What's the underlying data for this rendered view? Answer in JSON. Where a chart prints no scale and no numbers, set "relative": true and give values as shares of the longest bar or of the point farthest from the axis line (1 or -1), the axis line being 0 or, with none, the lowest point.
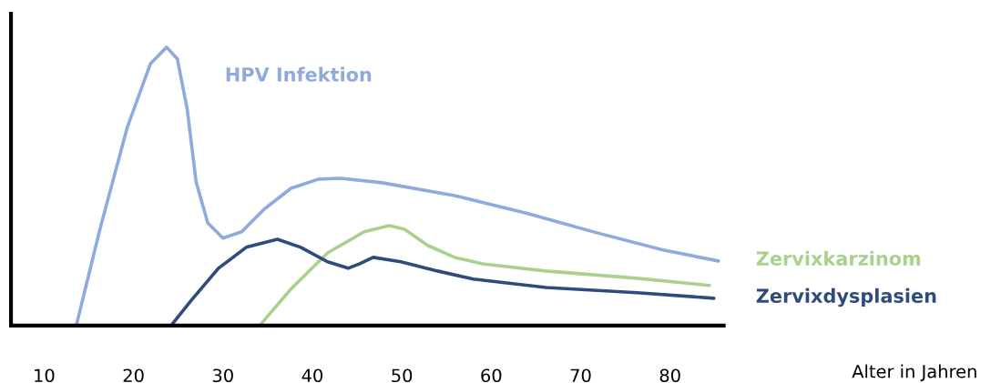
{
  "chart_data": {
    "type": "line",
    "relative": true,
    "annotations": [
      "Alter in Jahren"
    ],
    "xlim": [
      6.3,
      86
    ],
    "xticks": [
      10,
      20,
      30,
      40,
      50,
      60,
      70,
      80
    ],
    "grid": false,
    "legend": false,
    "marker": "none",
    "line_style": "solid",
    "series": [
      {
        "name": "HPV Infektion",
        "color": "#8faadc",
        "x": [
          13.6,
          16.3,
          19.3,
          21.9,
          23.7,
          24.9,
          26.0,
          27.0,
          28.3,
          30.0,
          32.1,
          34.6,
          37.6,
          40.7,
          43.2,
          47.8,
          55.9,
          64.1,
          72.2,
          79.3,
          85.4
        ],
        "values": [
          0,
          0.353,
          0.712,
          0.941,
          1.0,
          0.958,
          0.778,
          0.516,
          0.369,
          0.314,
          0.337,
          0.418,
          0.493,
          0.526,
          0.529,
          0.513,
          0.467,
          0.402,
          0.33,
          0.271,
          0.232
        ]
      },
      {
        "name": "Zervixkarzinom",
        "color": "#a9d18e",
        "x": [
          34.1,
          37.6,
          41.7,
          45.8,
          48.6,
          50.3,
          52.9,
          55.9,
          59.0,
          66.1,
          76.3,
          84.4
        ],
        "values": [
          0,
          0.131,
          0.261,
          0.337,
          0.359,
          0.346,
          0.288,
          0.245,
          0.222,
          0.196,
          0.17,
          0.144
        ]
      },
      {
        "name": "Zervixdysplasien",
        "color": "#2f4b7c",
        "x": [
          24.2,
          26.5,
          29.5,
          32.6,
          36.1,
          38.7,
          41.7,
          44.0,
          45.3,
          46.8,
          49.9,
          54.0,
          58.0,
          66.1,
          76.3,
          84.9
        ],
        "values": [
          0,
          0.092,
          0.206,
          0.281,
          0.31,
          0.281,
          0.229,
          0.206,
          0.222,
          0.245,
          0.229,
          0.196,
          0.167,
          0.137,
          0.118,
          0.098
        ]
      }
    ]
  }
}
